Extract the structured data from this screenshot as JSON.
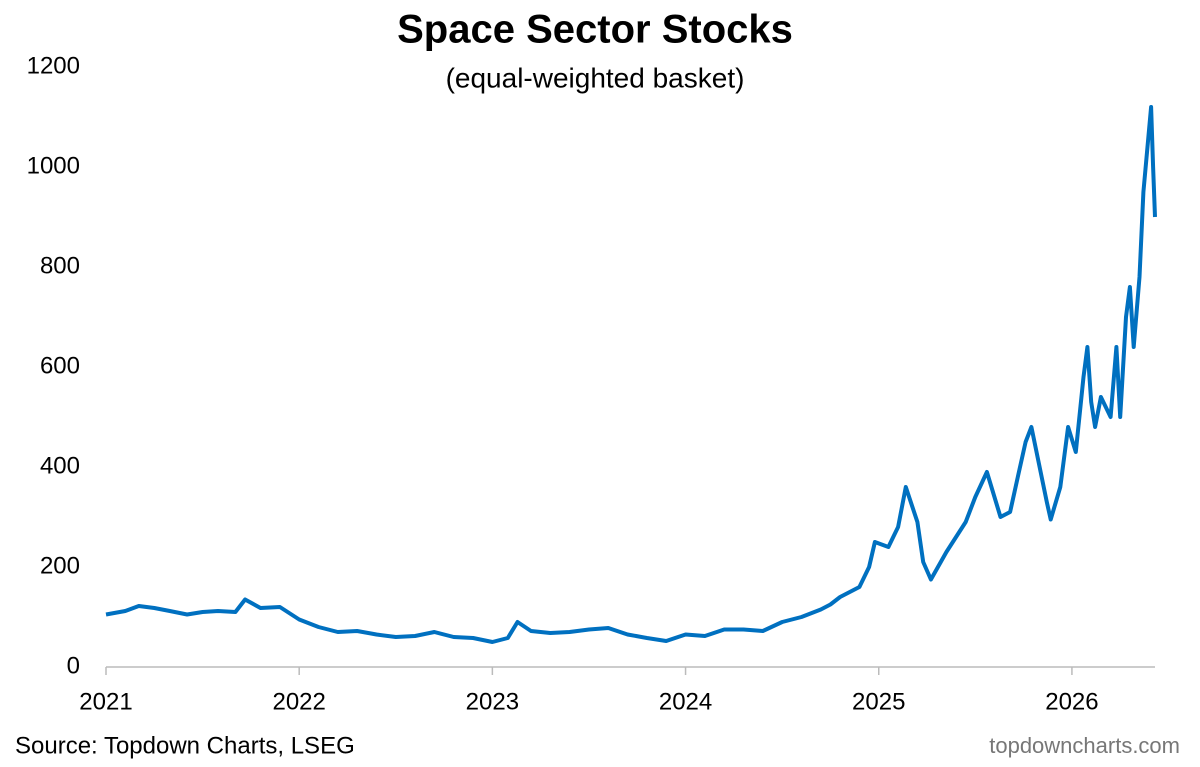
{
  "chart_data": {
    "type": "line",
    "title": "Space Sector Stocks",
    "subtitle": "(equal-weighted basket)",
    "source": "Source: Topdown Charts, LSEG",
    "watermark": "topdowncharts.com",
    "color": "#0070c0",
    "x": [
      2021.0,
      2021.1,
      2021.17,
      2021.25,
      2021.33,
      2021.42,
      2021.5,
      2021.58,
      2021.67,
      2021.72,
      2021.8,
      2021.9,
      2022.0,
      2022.1,
      2022.2,
      2022.3,
      2022.4,
      2022.5,
      2022.6,
      2022.7,
      2022.8,
      2022.9,
      2023.0,
      2023.08,
      2023.13,
      2023.2,
      2023.3,
      2023.4,
      2023.5,
      2023.6,
      2023.7,
      2023.8,
      2023.9,
      2024.0,
      2024.1,
      2024.2,
      2024.3,
      2024.4,
      2024.5,
      2024.6,
      2024.7,
      2024.75,
      2024.8,
      2024.9,
      2024.95,
      2024.98,
      2025.05,
      2025.1,
      2025.14,
      2025.2,
      2025.23,
      2025.27,
      2025.35,
      2025.45,
      2025.5,
      2025.56,
      2025.63,
      2025.68,
      2025.72,
      2025.76,
      2025.79,
      2025.87,
      2025.89,
      2025.94,
      2025.98,
      2026.02,
      2026.06,
      2026.08,
      2026.1,
      2026.12,
      2026.15,
      2026.2,
      2026.23,
      2026.25,
      2026.28,
      2026.3,
      2026.32,
      2026.35,
      2026.37,
      2026.41,
      2026.42,
      2026.43
    ],
    "values": [
      105,
      112,
      122,
      118,
      112,
      105,
      110,
      112,
      110,
      135,
      118,
      120,
      95,
      80,
      70,
      72,
      65,
      60,
      62,
      70,
      60,
      58,
      50,
      58,
      90,
      72,
      68,
      70,
      75,
      78,
      65,
      58,
      52,
      65,
      62,
      75,
      75,
      72,
      90,
      100,
      115,
      125,
      140,
      160,
      200,
      250,
      240,
      280,
      360,
      290,
      210,
      175,
      230,
      290,
      340,
      390,
      300,
      310,
      380,
      450,
      480,
      330,
      295,
      360,
      480,
      430,
      580,
      640,
      530,
      480,
      540,
      500,
      640,
      500,
      700,
      760,
      640,
      780,
      950,
      1120,
      1000,
      900
    ],
    "xlim": [
      2021,
      2026.43
    ],
    "xticks": [
      2021,
      2022,
      2023,
      2024,
      2025,
      2026
    ],
    "ylim": [
      0,
      1200
    ],
    "yticks": [
      0,
      200,
      400,
      600,
      800,
      1000,
      1200
    ],
    "grid": false
  }
}
